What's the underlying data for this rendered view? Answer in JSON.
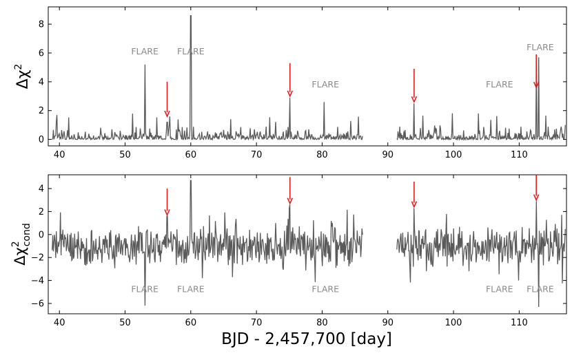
{
  "chart_data": [
    {
      "type": "line",
      "panel": "top",
      "ylabel": "Δχ²",
      "ylabel_base": "Δχ",
      "ylabel_sup": "2",
      "xlim": [
        38.3,
        117.2
      ],
      "ylim": [
        -0.45,
        9.2
      ],
      "xticks": [
        40,
        50,
        60,
        70,
        80,
        90,
        100,
        110
      ],
      "xtick_labels": [
        "40",
        "50",
        "60",
        "70",
        "80",
        "90",
        "100",
        "110"
      ],
      "yticks": [
        0,
        2,
        4,
        6,
        8
      ],
      "ytick_labels": [
        "0",
        "2",
        "4",
        "6",
        "8"
      ],
      "data_gap": [
        86.2,
        91.3
      ],
      "series": [
        {
          "name": "delta_chi2",
          "color": "#5a5a5a",
          "baseline": 0.25,
          "noise": 0.45
        }
      ],
      "peaks": [
        {
          "x": 53.0,
          "y": 5.2
        },
        {
          "x": 56.4,
          "y": 1.2
        },
        {
          "x": 60.0,
          "y": 8.6
        },
        {
          "x": 75.1,
          "y": 2.9
        },
        {
          "x": 80.3,
          "y": 2.6
        },
        {
          "x": 94.0,
          "y": 2.5
        },
        {
          "x": 112.6,
          "y": 5.4
        },
        {
          "x": 113.0,
          "y": 5.7
        }
      ],
      "arrows": [
        {
          "x": 56.4,
          "y_top": 4.0,
          "y_tip": 1.6
        },
        {
          "x": 75.1,
          "y_top": 5.3,
          "y_tip": 3.0
        },
        {
          "x": 94.0,
          "y_top": 4.9,
          "y_tip": 2.6
        },
        {
          "x": 112.6,
          "y_top": 5.9,
          "y_tip": 3.6
        }
      ],
      "annotations": [
        {
          "text": "FLARE",
          "x": 53.0,
          "y": 5.9
        },
        {
          "text": "FLARE",
          "x": 60.0,
          "y": 5.9
        },
        {
          "text": "FLARE",
          "x": 80.5,
          "y": 3.6
        },
        {
          "text": "FLARE",
          "x": 107.0,
          "y": 3.6
        },
        {
          "text": "FLARE",
          "x": 113.2,
          "y": 6.2
        }
      ]
    },
    {
      "type": "line",
      "panel": "bottom",
      "ylabel": "Δχ²_cond",
      "ylabel_base": "Δχ",
      "ylabel_sup": "2",
      "ylabel_sub": "cond",
      "xlabel": "BJD - 2,457,700 [day]",
      "xlim": [
        38.3,
        117.2
      ],
      "ylim": [
        -6.9,
        5.2
      ],
      "xticks": [
        40,
        50,
        60,
        70,
        80,
        90,
        100,
        110
      ],
      "xtick_labels": [
        "40",
        "50",
        "60",
        "70",
        "80",
        "90",
        "100",
        "110"
      ],
      "yticks": [
        -6,
        -4,
        -2,
        0,
        2,
        4
      ],
      "ytick_labels": [
        "−6",
        "−4",
        "−2",
        "0",
        "2",
        "4"
      ],
      "data_gap": [
        86.2,
        91.3
      ],
      "series": [
        {
          "name": "delta_chi2_cond",
          "color": "#5a5a5a",
          "baseline": -1.0,
          "noise": 1.2
        }
      ],
      "peaks": [
        {
          "x": 53.0,
          "y": -6.2
        },
        {
          "x": 56.4,
          "y": 1.6
        },
        {
          "x": 60.0,
          "y": 4.7
        },
        {
          "x": 75.1,
          "y": 2.6
        },
        {
          "x": 94.0,
          "y": 2.3
        },
        {
          "x": 112.6,
          "y": 2.9
        },
        {
          "x": 113.0,
          "y": -6.3
        }
      ],
      "arrows": [
        {
          "x": 56.4,
          "y_top": 4.0,
          "y_tip": 1.7
        },
        {
          "x": 75.1,
          "y_top": 5.0,
          "y_tip": 2.7
        },
        {
          "x": 94.0,
          "y_top": 4.6,
          "y_tip": 2.4
        },
        {
          "x": 112.6,
          "y_top": 5.2,
          "y_tip": 3.0
        }
      ],
      "annotations": [
        {
          "text": "FLARE",
          "x": 53.0,
          "y": -5.0
        },
        {
          "text": "FLARE",
          "x": 60.0,
          "y": -5.0
        },
        {
          "text": "FLARE",
          "x": 80.5,
          "y": -5.0
        },
        {
          "text": "FLARE",
          "x": 107.0,
          "y": -5.0
        },
        {
          "text": "FLARE",
          "x": 113.2,
          "y": -5.0
        }
      ]
    }
  ]
}
